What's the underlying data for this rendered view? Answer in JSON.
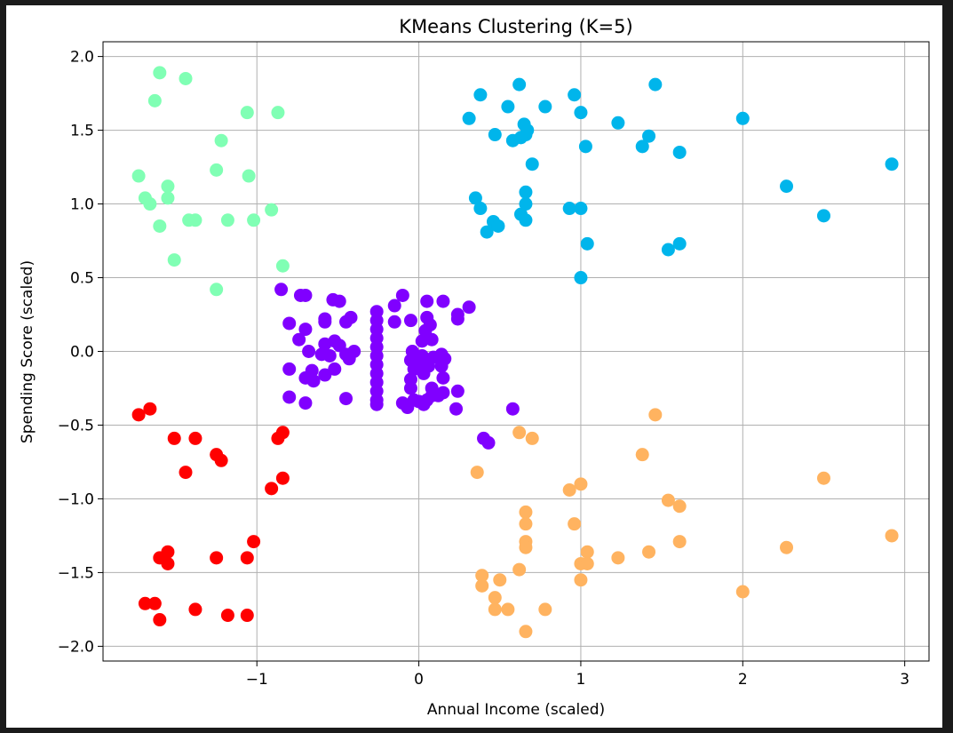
{
  "chart_data": {
    "type": "scatter",
    "title": "KMeans Clustering (K=5)",
    "xlabel": "Annual Income (scaled)",
    "ylabel": "Spending Score (scaled)",
    "xlim": [
      -1.95,
      3.15
    ],
    "ylim": [
      -2.1,
      2.1
    ],
    "xticks": [
      -1,
      0,
      1,
      2,
      3
    ],
    "xtick_labels": [
      "−1",
      "0",
      "1",
      "2",
      "3"
    ],
    "yticks": [
      -2.0,
      -1.5,
      -1.0,
      -0.5,
      0.0,
      0.5,
      1.0,
      1.5,
      2.0
    ],
    "ytick_labels": [
      "−2.0",
      "−1.5",
      "−1.0",
      "−0.5",
      "0.0",
      "0.5",
      "1.0",
      "1.5",
      "2.0"
    ],
    "grid": true,
    "series": [
      {
        "color": "#8000ff",
        "points": [
          [
            -0.85,
            0.42
          ],
          [
            -0.73,
            0.38
          ],
          [
            -0.7,
            0.38
          ],
          [
            -0.53,
            0.35
          ],
          [
            -0.49,
            0.34
          ],
          [
            -0.42,
            0.23
          ],
          [
            -0.45,
            0.2
          ],
          [
            -0.58,
            0.22
          ],
          [
            -0.58,
            0.2
          ],
          [
            -0.8,
            0.19
          ],
          [
            -0.7,
            0.15
          ],
          [
            -0.74,
            0.08
          ],
          [
            -0.52,
            0.07
          ],
          [
            -0.49,
            0.04
          ],
          [
            -0.58,
            0.05
          ],
          [
            -0.4,
            0.0
          ],
          [
            -0.45,
            -0.02
          ],
          [
            -0.68,
            0.0
          ],
          [
            -0.6,
            -0.02
          ],
          [
            -0.55,
            -0.03
          ],
          [
            -0.43,
            -0.05
          ],
          [
            -0.66,
            -0.13
          ],
          [
            -0.8,
            -0.12
          ],
          [
            -0.7,
            -0.18
          ],
          [
            -0.58,
            -0.16
          ],
          [
            -0.65,
            -0.2
          ],
          [
            -0.52,
            -0.12
          ],
          [
            -0.8,
            -0.31
          ],
          [
            -0.45,
            -0.32
          ],
          [
            -0.7,
            -0.35
          ],
          [
            -0.26,
            0.27
          ],
          [
            -0.26,
            0.21
          ],
          [
            -0.26,
            0.15
          ],
          [
            -0.26,
            0.09
          ],
          [
            -0.26,
            0.03
          ],
          [
            -0.26,
            -0.03
          ],
          [
            -0.26,
            -0.09
          ],
          [
            -0.26,
            -0.15
          ],
          [
            -0.26,
            -0.21
          ],
          [
            -0.26,
            -0.27
          ],
          [
            -0.26,
            -0.33
          ],
          [
            -0.26,
            -0.36
          ],
          [
            -0.15,
            0.2
          ],
          [
            -0.1,
            0.38
          ],
          [
            -0.15,
            0.31
          ],
          [
            -0.05,
            0.21
          ],
          [
            -0.04,
            0.0
          ],
          [
            -0.05,
            -0.06
          ],
          [
            -0.03,
            -0.12
          ],
          [
            -0.05,
            -0.19
          ],
          [
            -0.05,
            -0.25
          ],
          [
            -0.1,
            -0.35
          ],
          [
            -0.07,
            -0.38
          ],
          [
            -0.03,
            -0.33
          ],
          [
            0.05,
            0.34
          ],
          [
            0.05,
            0.23
          ],
          [
            0.07,
            0.18
          ],
          [
            0.04,
            0.14
          ],
          [
            0.02,
            0.07
          ],
          [
            0.02,
            -0.03
          ],
          [
            0.0,
            -0.1
          ],
          [
            0.06,
            -0.1
          ],
          [
            0.03,
            -0.15
          ],
          [
            0.08,
            -0.25
          ],
          [
            0.08,
            -0.3
          ],
          [
            0.05,
            -0.33
          ],
          [
            0.03,
            -0.36
          ],
          [
            0.0,
            -0.34
          ],
          [
            0.08,
            0.08
          ],
          [
            0.09,
            -0.04
          ],
          [
            0.15,
            0.34
          ],
          [
            0.14,
            -0.02
          ],
          [
            0.14,
            -0.1
          ],
          [
            0.15,
            -0.18
          ],
          [
            0.15,
            -0.28
          ],
          [
            0.12,
            -0.3
          ],
          [
            0.16,
            -0.05
          ],
          [
            0.24,
            0.25
          ],
          [
            0.24,
            0.22
          ],
          [
            0.31,
            0.3
          ],
          [
            0.24,
            -0.27
          ],
          [
            0.23,
            -0.39
          ],
          [
            0.58,
            -0.39
          ],
          [
            0.4,
            -0.59
          ],
          [
            0.43,
            -0.62
          ]
        ]
      },
      {
        "color": "#00b5eb",
        "points": [
          [
            0.31,
            1.58
          ],
          [
            0.38,
            1.74
          ],
          [
            0.47,
            1.47
          ],
          [
            0.55,
            1.66
          ],
          [
            0.58,
            1.43
          ],
          [
            0.62,
            1.81
          ],
          [
            0.63,
            1.45
          ],
          [
            0.65,
            1.54
          ],
          [
            0.66,
            1.47
          ],
          [
            0.67,
            1.5
          ],
          [
            0.7,
            1.27
          ],
          [
            0.78,
            1.66
          ],
          [
            0.96,
            1.74
          ],
          [
            1.0,
            1.62
          ],
          [
            1.03,
            1.39
          ],
          [
            1.23,
            1.55
          ],
          [
            1.38,
            1.39
          ],
          [
            1.42,
            1.46
          ],
          [
            1.46,
            1.81
          ],
          [
            1.61,
            1.35
          ],
          [
            2.0,
            1.58
          ],
          [
            2.27,
            1.12
          ],
          [
            2.5,
            0.92
          ],
          [
            2.92,
            1.27
          ],
          [
            0.35,
            1.04
          ],
          [
            0.38,
            0.97
          ],
          [
            0.42,
            0.81
          ],
          [
            0.46,
            0.88
          ],
          [
            0.49,
            0.85
          ],
          [
            0.63,
            0.93
          ],
          [
            0.66,
            1.08
          ],
          [
            0.66,
            1.0
          ],
          [
            0.66,
            0.89
          ],
          [
            0.93,
            0.97
          ],
          [
            1.0,
            0.97
          ],
          [
            1.04,
            0.73
          ],
          [
            1.0,
            0.5
          ],
          [
            1.54,
            0.69
          ],
          [
            1.61,
            0.73
          ]
        ]
      },
      {
        "color": "#80ffb4",
        "points": [
          [
            -1.6,
            1.89
          ],
          [
            -1.44,
            1.85
          ],
          [
            -1.63,
            1.7
          ],
          [
            -1.06,
            1.62
          ],
          [
            -0.87,
            1.62
          ],
          [
            -1.22,
            1.43
          ],
          [
            -1.73,
            1.19
          ],
          [
            -1.25,
            1.23
          ],
          [
            -1.05,
            1.19
          ],
          [
            -1.55,
            1.12
          ],
          [
            -1.69,
            1.04
          ],
          [
            -1.55,
            1.04
          ],
          [
            -1.66,
            1.0
          ],
          [
            -0.91,
            0.96
          ],
          [
            -1.42,
            0.89
          ],
          [
            -1.38,
            0.89
          ],
          [
            -1.18,
            0.89
          ],
          [
            -1.02,
            0.89
          ],
          [
            -1.6,
            0.85
          ],
          [
            -1.51,
            0.62
          ],
          [
            -0.84,
            0.58
          ],
          [
            -1.25,
            0.42
          ]
        ]
      },
      {
        "color": "#ffb360",
        "points": [
          [
            0.36,
            -0.82
          ],
          [
            0.62,
            -0.55
          ],
          [
            0.7,
            -0.59
          ],
          [
            0.93,
            -0.94
          ],
          [
            0.96,
            -1.17
          ],
          [
            1.0,
            -0.9
          ],
          [
            1.38,
            -0.7
          ],
          [
            1.46,
            -0.43
          ],
          [
            1.54,
            -1.01
          ],
          [
            1.61,
            -1.05
          ],
          [
            1.61,
            -1.29
          ],
          [
            2.27,
            -1.33
          ],
          [
            2.5,
            -0.86
          ],
          [
            2.92,
            -1.25
          ],
          [
            0.66,
            -1.09
          ],
          [
            0.66,
            -1.17
          ],
          [
            0.66,
            -1.29
          ],
          [
            0.66,
            -1.33
          ],
          [
            0.39,
            -1.52
          ],
          [
            0.39,
            -1.59
          ],
          [
            0.47,
            -1.67
          ],
          [
            0.47,
            -1.75
          ],
          [
            0.5,
            -1.55
          ],
          [
            0.55,
            -1.75
          ],
          [
            0.62,
            -1.48
          ],
          [
            0.66,
            -1.9
          ],
          [
            0.78,
            -1.75
          ],
          [
            1.0,
            -1.44
          ],
          [
            1.0,
            -1.55
          ],
          [
            1.04,
            -1.36
          ],
          [
            1.04,
            -1.44
          ],
          [
            1.23,
            -1.4
          ],
          [
            1.42,
            -1.36
          ],
          [
            2.0,
            -1.63
          ]
        ]
      },
      {
        "color": "#ff0000",
        "points": [
          [
            -1.73,
            -0.43
          ],
          [
            -1.66,
            -0.39
          ],
          [
            -1.51,
            -0.59
          ],
          [
            -1.38,
            -0.59
          ],
          [
            -1.44,
            -0.82
          ],
          [
            -1.25,
            -0.7
          ],
          [
            -1.22,
            -0.74
          ],
          [
            -0.87,
            -0.59
          ],
          [
            -0.84,
            -0.55
          ],
          [
            -0.84,
            -0.86
          ],
          [
            -0.91,
            -0.93
          ],
          [
            -1.02,
            -1.29
          ],
          [
            -1.06,
            -1.4
          ],
          [
            -1.25,
            -1.4
          ],
          [
            -1.55,
            -1.36
          ],
          [
            -1.55,
            -1.44
          ],
          [
            -1.6,
            -1.4
          ],
          [
            -1.69,
            -1.71
          ],
          [
            -1.63,
            -1.71
          ],
          [
            -1.6,
            -1.82
          ],
          [
            -1.38,
            -1.75
          ],
          [
            -1.18,
            -1.79
          ],
          [
            -1.06,
            -1.79
          ]
        ]
      }
    ]
  }
}
